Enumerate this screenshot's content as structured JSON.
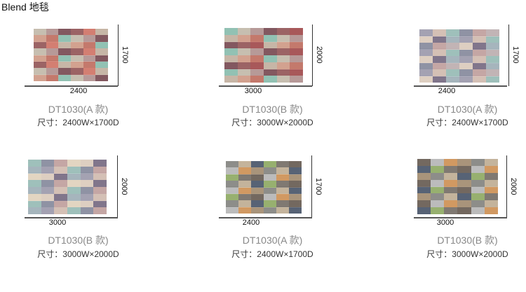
{
  "title": "Blend 地毯",
  "products": [
    {
      "model": "DT1030(A 款)",
      "size": "尺寸：2400W×1700D",
      "width_label": "2400",
      "height_label": "1700",
      "palette": [
        "#c9b7a6",
        "#9a5c5e",
        "#c67466",
        "#8fc4b4",
        "#d6a08c",
        "#b89896",
        "#7e5058",
        "#c9c0b0",
        "#d77a6c"
      ]
    },
    {
      "model": "DT1030(B 款)",
      "size": "尺寸：3000W×2000D",
      "width_label": "3000",
      "height_label": "2000",
      "palette": [
        "#c9b7a6",
        "#9a5c5e",
        "#c67466",
        "#8fc4b4",
        "#d6a08c",
        "#b89896",
        "#7e5058",
        "#c9c0b0",
        "#a85052"
      ]
    },
    {
      "model": "DT1030(A 款)",
      "size": "尺寸：2400W×1700D",
      "width_label": "2400",
      "height_label": "1700",
      "palette": [
        "#d8c2b6",
        "#a5b6be",
        "#8c90a3",
        "#c7a6a4",
        "#9dc2bc",
        "#e2d2c3",
        "#7c7088",
        "#c4b5b6",
        "#a3a0b3"
      ]
    },
    {
      "model": "DT1030(B 款)",
      "size": "尺寸：3000W×2000D",
      "width_label": "3000",
      "height_label": "2000",
      "palette": [
        "#d8c2b6",
        "#a5b6be",
        "#8c90a3",
        "#c7a6a4",
        "#9dc2bc",
        "#e2d2c3",
        "#7c7088",
        "#e8d9c4",
        "#a3a0b3"
      ]
    },
    {
      "model": "DT1030(A 款)",
      "size": "尺寸：2400W×1700D",
      "width_label": "2400",
      "height_label": "1700",
      "palette": [
        "#8a8a86",
        "#d5975a",
        "#4f5b70",
        "#95b069",
        "#c6b49a",
        "#6d6258",
        "#bdbdbd",
        "#7b746c",
        "#a99276"
      ]
    },
    {
      "model": "DT1030(B 款)",
      "size": "尺寸：3000W×2000D",
      "width_label": "3000",
      "height_label": "2000",
      "palette": [
        "#8a8a86",
        "#d5975a",
        "#4f5b70",
        "#95b069",
        "#c6b49a",
        "#6d6258",
        "#bdbdbd",
        "#7b746c",
        "#a99276"
      ]
    }
  ]
}
